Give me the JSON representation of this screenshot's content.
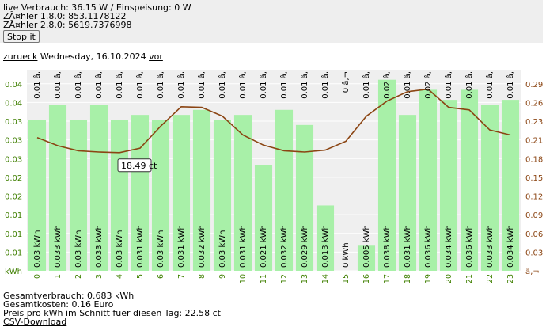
{
  "header": {
    "live_line": "live Verbrauch: 36.15 W / Einspeisung: 0 W",
    "meter_180": "ZÃ¤hler 1.8.0: 853.1178122",
    "meter_280": "ZÃ¤hler 2.8.0: 5619.7376998",
    "stop_button": "Stop it"
  },
  "nav": {
    "back_label": "zurueck",
    "date": " Wednesday, 16.10.2024 ",
    "forward_label": "vor"
  },
  "tooltip": {
    "text": "18.49 ct"
  },
  "chart_data": {
    "type": "bar",
    "categories": [
      "0",
      "1",
      "2",
      "3",
      "4",
      "5",
      "6",
      "7",
      "8",
      "9",
      "10",
      "11",
      "12",
      "13",
      "14",
      "15",
      "16",
      "17",
      "18",
      "19",
      "20",
      "21",
      "22",
      "23"
    ],
    "series": [
      {
        "values": [
          0.03,
          0.033,
          0.03,
          0.033,
          0.03,
          0.031,
          0.03,
          0.031,
          0.032,
          0.03,
          0.031,
          0.021,
          0.032,
          0.029,
          0.013,
          0,
          0.005,
          0.038,
          0.031,
          0.036,
          0.034,
          0.036,
          0.033,
          0.034
        ],
        "bar_labels": [
          "0.03 kWh",
          "0.033 kWh",
          "0.03 kWh",
          "0.033 kWh",
          "0.03 kWh",
          "0.031 kWh",
          "0.03 kWh",
          "0.031 kWh",
          "0.032 kWh",
          "0.03 kWh",
          "0.031 kWh",
          "0.021 kWh",
          "0.032 kWh",
          "0.029 kWh",
          "0.013 kWh",
          "0 kWh",
          "0.005 kWh",
          "0.038 kWh",
          "0.031 kWh",
          "0.036 kWh",
          "0.034 kWh",
          "0.036 kWh",
          "0.033 kWh",
          "0.034 kWh"
        ]
      },
      {
        "values": [
          21.2,
          19.9,
          19.1,
          18.9,
          18.8,
          19.5,
          23.0,
          26.1,
          26.0,
          24.6,
          21.6,
          20.0,
          19.1,
          18.9,
          19.2,
          20.6,
          24.6,
          27.0,
          28.5,
          28.9,
          26.0,
          25.6,
          22.4,
          21.6
        ]
      }
    ],
    "top_labels": [
      "0.01 â‚",
      "0.01 â‚",
      "0.01 â‚",
      "0.01 â‚",
      "0.01 â‚",
      "0.01 â‚",
      "0.01 â‚",
      "0.01 â‚",
      "0.01 â‚",
      "0.01 â‚",
      "0.01 â‚",
      "0.01 â‚",
      "0.01 â‚",
      "0.01 â‚",
      "0.01 â‚",
      "0 â‚¬",
      "0.01 â‚",
      "0.02 â‚",
      "0.01 â‚",
      "0.02 â‚",
      "0.01 â‚",
      "0.01 â‚",
      "0.01 â‚",
      "0.01 â‚"
    ],
    "y_left_ticks": [
      "kWh",
      "0.01",
      "0.01",
      "0.01",
      "0.02",
      "0.02",
      "0.03",
      "0.03",
      "0.03",
      "0.04",
      "0.04"
    ],
    "y_right_ticks": [
      "â‚¬",
      "0.03",
      "0.06",
      "0.09",
      "0.12",
      "0.15",
      "0.18",
      "0.21",
      "0.23",
      "0.26",
      "0.29"
    ],
    "ylim_bars": [
      0,
      0.04
    ],
    "ylim_line": [
      0,
      32
    ],
    "colors": {
      "bar": "#a8f0a8",
      "line": "#8b4513",
      "grid": "#ffffff",
      "plot_bg": "#efefef",
      "left_axis": "#3f7f00",
      "right_axis": "#8b4513"
    }
  },
  "summary": {
    "total_consumption": "Gesamtverbrauch: 0.683 kWh",
    "total_cost": "Gesamtkosten: 0.16 Euro",
    "avg_price": "Preis pro kWh im Schnitt fuer diesen Tag: 22.58 ct",
    "csv_download": "CSV-Download"
  }
}
